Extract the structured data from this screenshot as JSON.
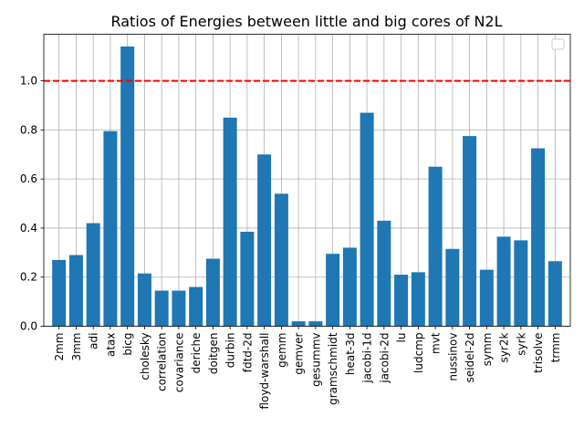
{
  "chart_data": {
    "type": "bar",
    "title": "Ratios of Energies between little and big cores of N2L",
    "xlabel": "",
    "ylabel": "",
    "categories": [
      "2mm",
      "3mm",
      "adi",
      "atax",
      "bicg",
      "cholesky",
      "correlation",
      "covariance",
      "deriche",
      "doitgen",
      "durbin",
      "fdtd-2d",
      "floyd-warshall",
      "gemm",
      "gemver",
      "gesummv",
      "gramschmidt",
      "heat-3d",
      "jacobi-1d",
      "jacobi-2d",
      "lu",
      "ludcmp",
      "mvt",
      "nussinov",
      "seidel-2d",
      "symm",
      "syr2k",
      "syrk",
      "trisolve",
      "trmm"
    ],
    "values": [
      0.27,
      0.29,
      0.42,
      0.795,
      1.14,
      0.215,
      0.145,
      0.145,
      0.16,
      0.275,
      0.85,
      0.385,
      0.7,
      0.54,
      0.02,
      0.02,
      0.295,
      0.32,
      0.87,
      0.43,
      0.21,
      0.22,
      0.65,
      0.315,
      0.775,
      0.23,
      0.365,
      0.35,
      0.725,
      0.265
    ],
    "ylim": [
      0,
      1.19
    ],
    "yticks": [
      0.0,
      0.2,
      0.4,
      0.6,
      0.8,
      1.0
    ],
    "ytick_labels": [
      "0.0",
      "0.2",
      "0.4",
      "0.6",
      "0.8",
      "1.0"
    ],
    "reference_line": {
      "y": 1.0,
      "color": "#ff0000",
      "style": "dashed"
    },
    "bar_color": "#1f77b4",
    "grid": true,
    "legend": {
      "placement": "top-right",
      "entries": []
    }
  }
}
